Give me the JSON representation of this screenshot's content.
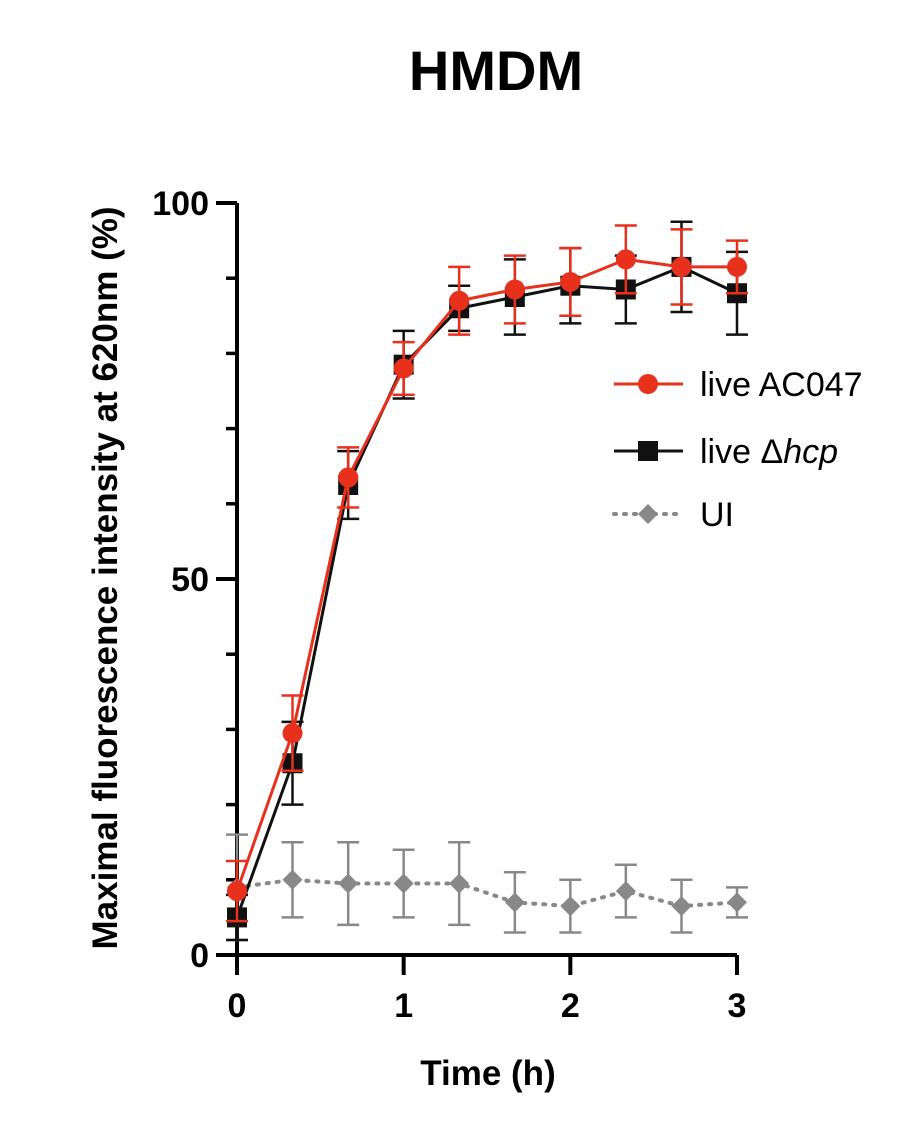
{
  "chart_data": {
    "type": "line",
    "title": "HMDM",
    "xlabel": "Time (h)",
    "ylabel": "Maximal fluorescence intensity at 620nm (%)",
    "xlim": [
      0,
      3
    ],
    "ylim": [
      0,
      100
    ],
    "x_ticks": [
      0,
      1,
      2,
      3
    ],
    "x_tick_labels": [
      "0",
      "1",
      "2",
      "3"
    ],
    "y_ticks": [
      0,
      50,
      100
    ],
    "y_tick_labels": [
      "0",
      "50",
      "100"
    ],
    "y_minor_step": 10,
    "grid": false,
    "legend_position": "right",
    "x": [
      0,
      0.333,
      0.667,
      1,
      1.333,
      1.667,
      2,
      2.333,
      2.667,
      3
    ],
    "series": [
      {
        "name_prefix": "live ",
        "name_italic": "AC047",
        "name_italic_flag": false,
        "color": "#e8311c",
        "marker": "circle",
        "line": "solid",
        "values": [
          8.5,
          29.5,
          63.5,
          78,
          87,
          88.5,
          89.5,
          92.5,
          91.5,
          91.5
        ],
        "errors": [
          4,
          5,
          4,
          3.5,
          4.5,
          4.5,
          4.5,
          4.5,
          5,
          3.5
        ]
      },
      {
        "name_prefix": "live Δ",
        "name_italic": "hcp",
        "name_italic_flag": true,
        "color": "#111111",
        "marker": "square",
        "line": "solid",
        "values": [
          5,
          25.5,
          62.5,
          78.5,
          86,
          87.5,
          89,
          88.5,
          91.5,
          88
        ],
        "errors": [
          3,
          5.5,
          4.5,
          4.5,
          3,
          5,
          5,
          4.5,
          6,
          5.5
        ]
      },
      {
        "name_prefix": "UI",
        "name_italic": "",
        "name_italic_flag": false,
        "color": "#888888",
        "marker": "diamond",
        "line": "dotted",
        "values": [
          9,
          10,
          9.5,
          9.5,
          9.5,
          7,
          6.5,
          8.5,
          6.5,
          7
        ],
        "errors": [
          7,
          5,
          5.5,
          4.5,
          5.5,
          4,
          3.5,
          3.5,
          3.5,
          2
        ]
      }
    ]
  }
}
